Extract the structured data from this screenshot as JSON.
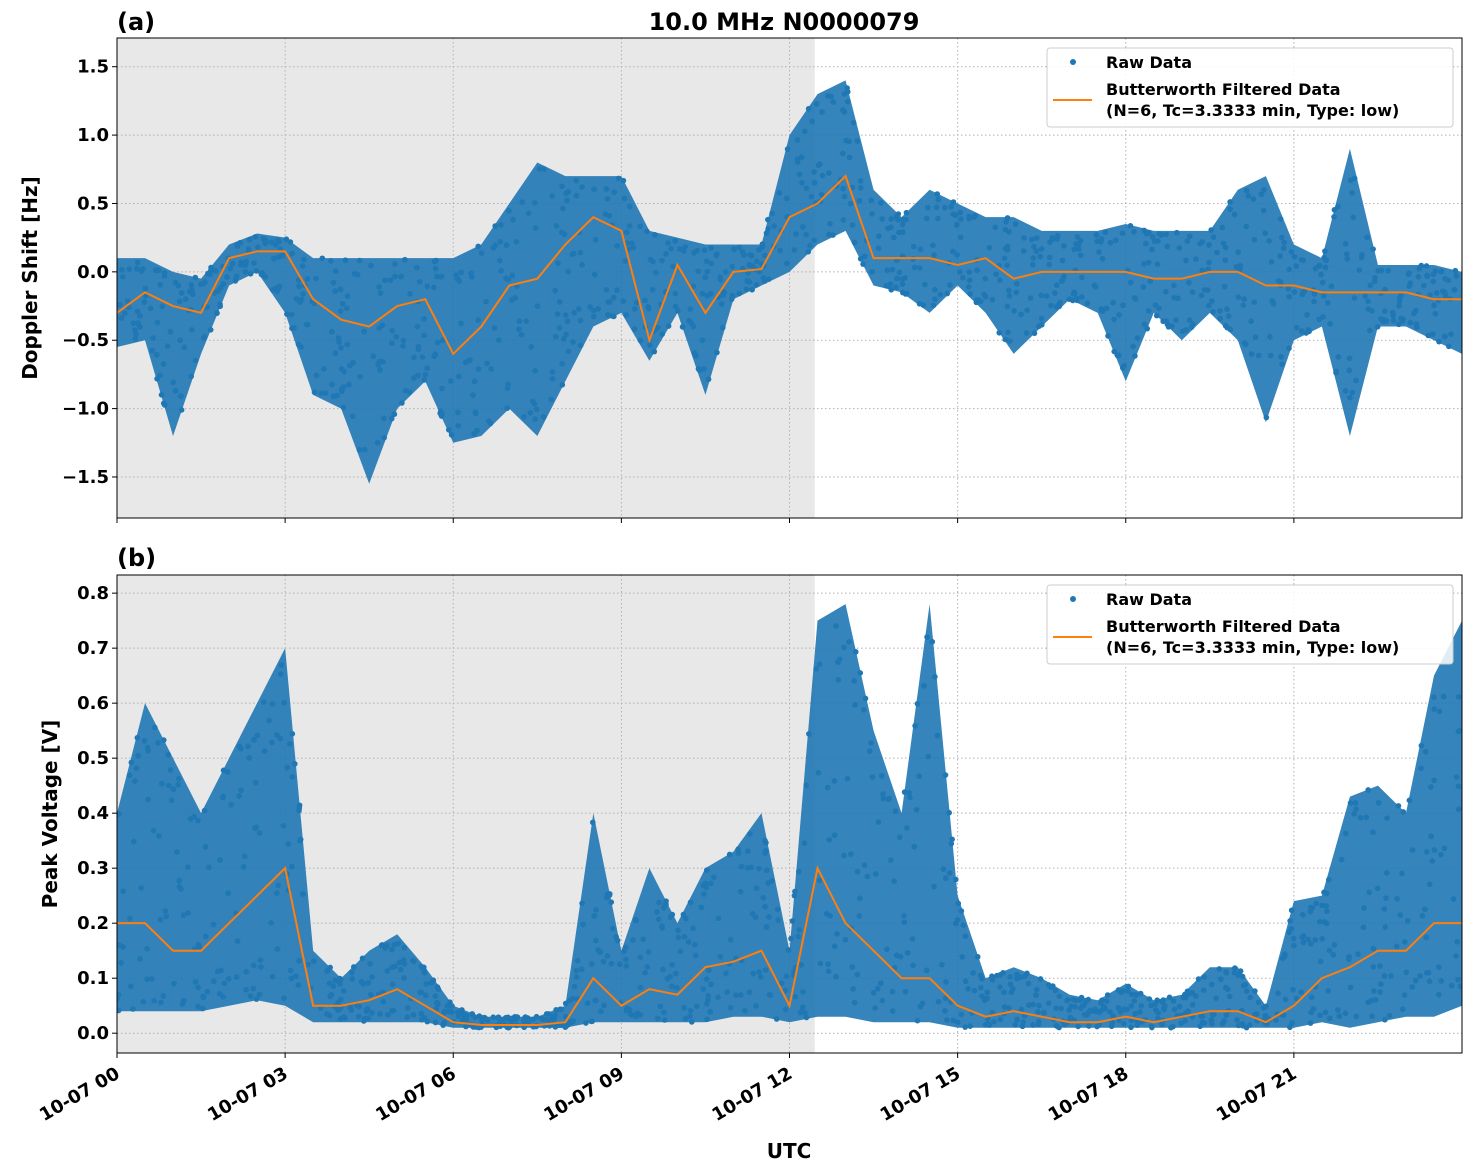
{
  "title": "10.0 MHz N0000079",
  "colors": {
    "raw": "#1f77b4",
    "filtered": "#ff7f0e",
    "shade": "#e8e8e8",
    "grid": "#b0b0b0"
  },
  "xlabel": "UTC",
  "x_ticks": [
    "10-07 00",
    "10-07 03",
    "10-07 06",
    "10-07 09",
    "10-07 12",
    "10-07 15",
    "10-07 18",
    "10-07 21"
  ],
  "x_tick_hours": [
    0,
    3,
    6,
    9,
    12,
    15,
    18,
    21
  ],
  "legend": {
    "raw": "Raw Data",
    "filtered_line1": "Butterworth Filtered Data",
    "filtered_line2": "(N=6, Tc=3.3333 min, Type: low)",
    "placement": "top-right"
  },
  "chart_data": [
    {
      "type": "scatter+line",
      "panel_label": "(a)",
      "ylabel": "Doppler Shift [Hz]",
      "xlim_hours": [
        0,
        24
      ],
      "ylim": [
        -1.8,
        1.71
      ],
      "y_ticks": [
        -1.5,
        -1.0,
        -0.5,
        0.0,
        0.5,
        1.0,
        1.5
      ],
      "y_tick_labels": [
        "−1.5",
        "−1.0",
        "−0.5",
        "0.0",
        "0.5",
        "1.0",
        "1.5"
      ],
      "grid": true,
      "shaded_until_hours": 12.45,
      "x_hours": [
        0,
        0.5,
        1,
        1.5,
        2,
        2.5,
        3,
        3.5,
        4,
        4.5,
        5,
        5.5,
        6,
        6.5,
        7,
        7.5,
        8,
        8.5,
        9,
        9.5,
        10,
        10.5,
        11,
        11.5,
        12,
        12.5,
        13,
        13.5,
        14,
        14.5,
        15,
        15.5,
        16,
        16.5,
        17,
        17.5,
        18,
        18.5,
        19,
        19.5,
        20,
        20.5,
        21,
        21.5,
        22,
        22.5,
        23,
        23.5,
        24
      ],
      "series": [
        {
          "name": "Butterworth Filtered Data",
          "values": [
            -0.3,
            -0.15,
            -0.25,
            -0.3,
            0.1,
            0.15,
            0.15,
            -0.2,
            -0.35,
            -0.4,
            -0.25,
            -0.2,
            -0.6,
            -0.4,
            -0.1,
            -0.05,
            0.2,
            0.4,
            0.3,
            -0.5,
            0.05,
            -0.3,
            0.0,
            0.02,
            0.4,
            0.5,
            0.7,
            0.1,
            0.1,
            0.1,
            0.05,
            0.1,
            -0.05,
            0.0,
            0.0,
            0.0,
            0.0,
            -0.05,
            -0.05,
            0.0,
            0.0,
            -0.1,
            -0.1,
            -0.15,
            -0.15,
            -0.15,
            -0.15,
            -0.2,
            -0.2
          ]
        },
        {
          "name": "Raw Data",
          "range_low": [
            -0.55,
            -0.5,
            -1.2,
            -0.6,
            -0.1,
            0.0,
            -0.3,
            -0.9,
            -1.0,
            -1.55,
            -1.0,
            -0.8,
            -1.25,
            -1.2,
            -1.0,
            -1.2,
            -0.8,
            -0.4,
            -0.3,
            -0.65,
            -0.3,
            -0.9,
            -0.2,
            -0.1,
            0.0,
            0.2,
            0.3,
            -0.1,
            -0.15,
            -0.3,
            -0.1,
            -0.3,
            -0.6,
            -0.4,
            -0.2,
            -0.3,
            -0.8,
            -0.3,
            -0.5,
            -0.3,
            -0.5,
            -1.1,
            -0.5,
            -0.4,
            -1.2,
            -0.4,
            -0.4,
            -0.5,
            -0.6
          ],
          "range_high": [
            0.1,
            0.1,
            0.0,
            -0.05,
            0.2,
            0.28,
            0.25,
            0.1,
            0.1,
            0.1,
            0.1,
            0.1,
            0.1,
            0.2,
            0.5,
            0.8,
            0.7,
            0.7,
            0.7,
            0.3,
            0.25,
            0.2,
            0.2,
            0.2,
            1.0,
            1.3,
            1.4,
            0.6,
            0.4,
            0.6,
            0.5,
            0.4,
            0.4,
            0.3,
            0.3,
            0.3,
            0.35,
            0.3,
            0.3,
            0.3,
            0.6,
            0.7,
            0.2,
            0.1,
            0.9,
            0.05,
            0.05,
            0.05,
            0.0
          ]
        }
      ]
    },
    {
      "type": "scatter+line",
      "panel_label": "(b)",
      "ylabel": "Peak Voltage [V]",
      "xlim_hours": [
        0,
        24
      ],
      "ylim": [
        -0.036,
        0.833
      ],
      "y_ticks": [
        0.0,
        0.1,
        0.2,
        0.3,
        0.4,
        0.5,
        0.6,
        0.7,
        0.8
      ],
      "y_tick_labels": [
        "0.0",
        "0.1",
        "0.2",
        "0.3",
        "0.4",
        "0.5",
        "0.6",
        "0.7",
        "0.8"
      ],
      "grid": true,
      "shaded_until_hours": 12.45,
      "x_hours": [
        0,
        0.5,
        1,
        1.5,
        2,
        2.5,
        3,
        3.5,
        4,
        4.5,
        5,
        5.5,
        6,
        6.5,
        7,
        7.5,
        8,
        8.5,
        9,
        9.5,
        10,
        10.5,
        11,
        11.5,
        12,
        12.5,
        13,
        13.5,
        14,
        14.5,
        15,
        15.5,
        16,
        16.5,
        17,
        17.5,
        18,
        18.5,
        19,
        19.5,
        20,
        20.5,
        21,
        21.5,
        22,
        22.5,
        23,
        23.5,
        24
      ],
      "series": [
        {
          "name": "Butterworth Filtered Data",
          "values": [
            0.2,
            0.2,
            0.15,
            0.15,
            0.2,
            0.25,
            0.3,
            0.05,
            0.05,
            0.06,
            0.08,
            0.05,
            0.02,
            0.015,
            0.015,
            0.015,
            0.02,
            0.1,
            0.05,
            0.08,
            0.07,
            0.12,
            0.13,
            0.15,
            0.05,
            0.3,
            0.2,
            0.15,
            0.1,
            0.1,
            0.05,
            0.03,
            0.04,
            0.03,
            0.02,
            0.02,
            0.03,
            0.02,
            0.03,
            0.04,
            0.04,
            0.02,
            0.05,
            0.1,
            0.12,
            0.15,
            0.15,
            0.2,
            0.2
          ]
        },
        {
          "name": "Raw Data",
          "range_low": [
            0.04,
            0.04,
            0.04,
            0.04,
            0.05,
            0.06,
            0.05,
            0.02,
            0.02,
            0.02,
            0.02,
            0.02,
            0.01,
            0.01,
            0.01,
            0.01,
            0.01,
            0.02,
            0.02,
            0.02,
            0.02,
            0.02,
            0.03,
            0.03,
            0.02,
            0.03,
            0.03,
            0.02,
            0.02,
            0.02,
            0.01,
            0.01,
            0.01,
            0.01,
            0.01,
            0.01,
            0.01,
            0.01,
            0.01,
            0.01,
            0.01,
            0.01,
            0.01,
            0.02,
            0.01,
            0.02,
            0.03,
            0.03,
            0.05
          ],
          "range_high": [
            0.4,
            0.6,
            0.5,
            0.4,
            0.5,
            0.6,
            0.7,
            0.15,
            0.1,
            0.15,
            0.18,
            0.12,
            0.05,
            0.03,
            0.03,
            0.03,
            0.05,
            0.4,
            0.15,
            0.3,
            0.2,
            0.3,
            0.33,
            0.4,
            0.15,
            0.75,
            0.78,
            0.55,
            0.4,
            0.78,
            0.25,
            0.1,
            0.12,
            0.1,
            0.07,
            0.06,
            0.09,
            0.06,
            0.07,
            0.12,
            0.12,
            0.05,
            0.24,
            0.25,
            0.43,
            0.45,
            0.4,
            0.65,
            0.75
          ]
        }
      ]
    }
  ]
}
